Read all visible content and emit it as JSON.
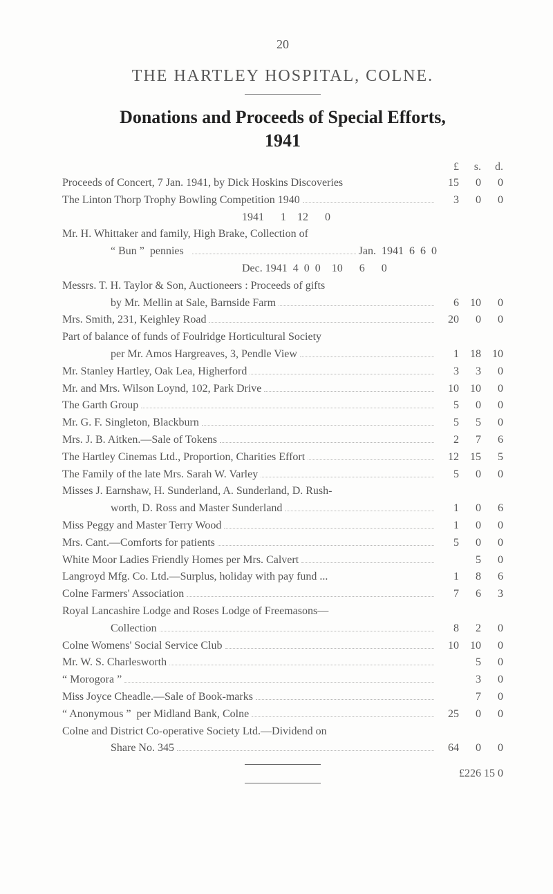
{
  "page_number": "20",
  "title_line1": "THE  HARTLEY  HOSPITAL,  COLNE.",
  "title_line2": "Donations and Proceeds of Special Efforts,",
  "title_line3": "1941",
  "header": {
    "l": "£",
    "s": "s.",
    "d": "d."
  },
  "rows": [
    {
      "text": "Proceeds of Concert, 7 Jan. 1941, by Dick Hoskins Discoveries",
      "l": "15",
      "s": "0",
      "d": "0",
      "dots": false
    },
    {
      "text": "The Linton Thorp Trophy Bowling Competition 1940",
      "l": "3",
      "s": "0",
      "d": "0"
    },
    {
      "text": "1941",
      "l": "1",
      "s": "12",
      "d": "0",
      "indent": "sub"
    },
    {
      "text": "Mr. H. Whittaker and family, High Brake, Collection of",
      "nosum": true
    },
    {
      "text": "“ Bun ”  pennies  ",
      "tail": "Jan.  1941  6  6  0",
      "indent": 1,
      "nosum": true
    },
    {
      "text": "Dec. 1941  4  0  0",
      "l": "10",
      "s": "6",
      "d": "0",
      "indent": "sub",
      "dots": false
    },
    {
      "text": "Messrs. T. H. Taylor & Son, Auctioneers : Proceeds of gifts",
      "nosum": true
    },
    {
      "text": "by Mr. Mellin at Sale, Barnside Farm",
      "l": "6",
      "s": "10",
      "d": "0",
      "indent": 1
    },
    {
      "text": "Mrs. Smith, 231, Keighley Road",
      "l": "20",
      "s": "0",
      "d": "0"
    },
    {
      "text": "Part of balance of funds of Foulridge Horticultural Society",
      "nosum": true
    },
    {
      "text": "per Mr. Amos Hargreaves, 3, Pendle View",
      "l": "1",
      "s": "18",
      "d": "10",
      "indent": 1
    },
    {
      "text": "Mr. Stanley Hartley, Oak Lea, Higherford",
      "l": "3",
      "s": "3",
      "d": "0"
    },
    {
      "text": "Mr. and Mrs. Wilson Loynd, 102, Park Drive",
      "l": "10",
      "s": "10",
      "d": "0"
    },
    {
      "text": "The Garth Group",
      "l": "5",
      "s": "0",
      "d": "0"
    },
    {
      "text": "Mr. G. F. Singleton, Blackburn",
      "l": "5",
      "s": "5",
      "d": "0"
    },
    {
      "text": "Mrs. J. B. Aitken.—Sale of Tokens",
      "l": "2",
      "s": "7",
      "d": "6"
    },
    {
      "text": "The Hartley Cinemas Ltd., Proportion, Charities Effort",
      "l": "12",
      "s": "15",
      "d": "5"
    },
    {
      "text": "The Family of the late Mrs. Sarah W. Varley",
      "l": "5",
      "s": "0",
      "d": "0"
    },
    {
      "text": "Misses J. Earnshaw, H. Sunderland, A. Sunderland, D. Rush-",
      "nosum": true
    },
    {
      "text": "worth, D. Ross and Master Sunderland",
      "l": "1",
      "s": "0",
      "d": "6",
      "indent": 1
    },
    {
      "text": "Miss Peggy and Master Terry Wood",
      "l": "1",
      "s": "0",
      "d": "0"
    },
    {
      "text": "Mrs. Cant.—Comforts for patients",
      "l": "5",
      "s": "0",
      "d": "0"
    },
    {
      "text": "White Moor Ladies Friendly Homes per Mrs. Calvert",
      "l": "",
      "s": "5",
      "d": "0"
    },
    {
      "text": "Langroyd Mfg. Co. Ltd.—Surplus, holiday with pay fund ...",
      "l": "1",
      "s": "8",
      "d": "6",
      "dots": false
    },
    {
      "text": "Colne Farmers' Association",
      "l": "7",
      "s": "6",
      "d": "3"
    },
    {
      "text": "Royal Lancashire Lodge and Roses Lodge of Freemasons—",
      "nosum": true
    },
    {
      "text": "Collection",
      "l": "8",
      "s": "2",
      "d": "0",
      "indent": 1
    },
    {
      "text": "Colne Womens' Social Service Club",
      "l": "10",
      "s": "10",
      "d": "0"
    },
    {
      "text": "Mr. W. S. Charlesworth",
      "l": "",
      "s": "5",
      "d": "0"
    },
    {
      "text": "“ Morogora ”",
      "l": "",
      "s": "3",
      "d": "0"
    },
    {
      "text": "Miss Joyce Cheadle.—Sale of Book-marks",
      "l": "",
      "s": "7",
      "d": "0"
    },
    {
      "text": "“ Anonymous ”  per Midland Bank, Colne",
      "l": "25",
      "s": "0",
      "d": "0"
    },
    {
      "text": "Colne and District Co-operative Society Ltd.—Dividend on",
      "nosum": true
    },
    {
      "text": "Share No. 345",
      "l": "64",
      "s": "0",
      "d": "0",
      "indent": 1
    }
  ],
  "total": "£226 15  0"
}
